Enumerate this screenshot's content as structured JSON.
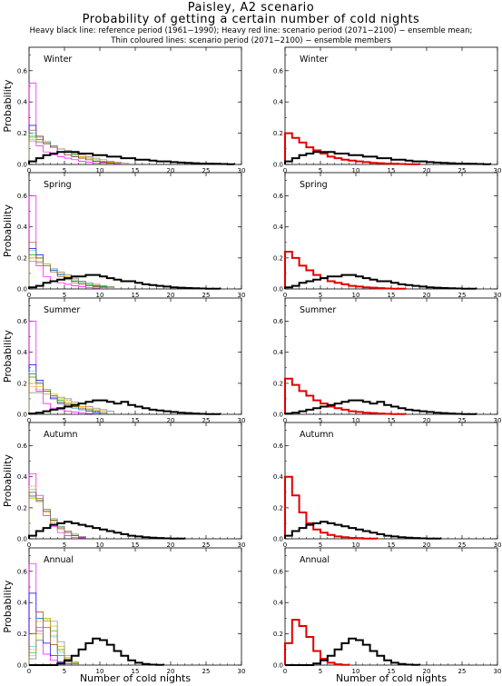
{
  "header": {
    "title": "Paisley, A2 scenario",
    "subtitle": "Probability of getting a certain number of cold nights",
    "legend_line1": "Heavy black line: reference period (1961−1990); Heavy red line: scenario period (2071−2100) − ensemble mean;",
    "legend_line2": "Thin coloured lines: scenario period (2071−2100) − ensemble members"
  },
  "axes": {
    "xlabel": "Number of cold nights",
    "ylabel": "Probability",
    "xlim": [
      0,
      30
    ],
    "ylim": [
      0,
      0.75
    ],
    "xticks": [
      "0",
      "5",
      "10",
      "15",
      "20",
      "25",
      "30"
    ],
    "yticks": [
      "0.0",
      "0.2",
      "0.4",
      "0.6"
    ]
  },
  "colors": {
    "reference": "#000000",
    "scenario_mean": "#e00000",
    "members": [
      "#ff00ff",
      "#0000ff",
      "#00c8c8",
      "#00b000",
      "#c8c800",
      "#ff8c00",
      "#8b4513",
      "#808080",
      "#9400d3",
      "#006400",
      "#ff1493"
    ]
  },
  "chart_data": [
    {
      "type": "line",
      "step": true,
      "season": "Winter",
      "reference": [
        0.02,
        0.04,
        0.06,
        0.07,
        0.08,
        0.08,
        0.08,
        0.07,
        0.07,
        0.06,
        0.06,
        0.05,
        0.05,
        0.04,
        0.04,
        0.03,
        0.03,
        0.025,
        0.02,
        0.02,
        0.015,
        0.012,
        0.01,
        0.008,
        0.006,
        0.005,
        0.004,
        0.003,
        0.002
      ],
      "scenario_mean": [
        0.2,
        0.17,
        0.14,
        0.11,
        0.09,
        0.07,
        0.05,
        0.04,
        0.03,
        0.025,
        0.02,
        0.015,
        0.01,
        0.008,
        0.006,
        0.004,
        0.003,
        0.002,
        0.001
      ],
      "members": [
        [
          0.52,
          0.12,
          0.08,
          0.06,
          0.05,
          0.04,
          0.03,
          0.02,
          0.015,
          0.01,
          0.01,
          0.008,
          0.006
        ],
        [
          0.25,
          0.18,
          0.14,
          0.11,
          0.08,
          0.06,
          0.05,
          0.04,
          0.03,
          0.02,
          0.015,
          0.01
        ],
        [
          0.2,
          0.17,
          0.15,
          0.12,
          0.1,
          0.08,
          0.06,
          0.05,
          0.04,
          0.03,
          0.02,
          0.015,
          0.01
        ],
        [
          0.18,
          0.16,
          0.14,
          0.12,
          0.1,
          0.08,
          0.06,
          0.05,
          0.04,
          0.03,
          0.02,
          0.015,
          0.01
        ],
        [
          0.17,
          0.15,
          0.14,
          0.12,
          0.1,
          0.08,
          0.07,
          0.05,
          0.04,
          0.03,
          0.02,
          0.015,
          0.01
        ],
        [
          0.16,
          0.15,
          0.13,
          0.12,
          0.1,
          0.08,
          0.07,
          0.05,
          0.04,
          0.03,
          0.02,
          0.015,
          0.01
        ],
        [
          0.22,
          0.18,
          0.14,
          0.11,
          0.08,
          0.06,
          0.05,
          0.04,
          0.03,
          0.02,
          0.015,
          0.01
        ],
        [
          0.15,
          0.14,
          0.13,
          0.12,
          0.1,
          0.09,
          0.07,
          0.06,
          0.05,
          0.04,
          0.03,
          0.02,
          0.015,
          0.01
        ]
      ]
    },
    {
      "type": "line",
      "step": true,
      "season": "Spring",
      "reference": [
        0.01,
        0.02,
        0.04,
        0.05,
        0.06,
        0.07,
        0.08,
        0.08,
        0.09,
        0.09,
        0.08,
        0.07,
        0.06,
        0.05,
        0.05,
        0.04,
        0.03,
        0.025,
        0.02,
        0.015,
        0.01,
        0.008,
        0.006,
        0.004,
        0.003,
        0.002,
        0.001
      ],
      "scenario_mean": [
        0.24,
        0.2,
        0.15,
        0.12,
        0.09,
        0.07,
        0.05,
        0.04,
        0.03,
        0.02,
        0.015,
        0.01,
        0.008,
        0.005,
        0.003,
        0.002,
        0.001
      ],
      "members": [
        [
          0.6,
          0.15,
          0.08,
          0.05,
          0.04,
          0.03,
          0.02,
          0.015,
          0.01,
          0.006
        ],
        [
          0.26,
          0.22,
          0.16,
          0.12,
          0.09,
          0.07,
          0.05,
          0.04,
          0.03,
          0.02,
          0.015,
          0.01
        ],
        [
          0.25,
          0.2,
          0.16,
          0.12,
          0.09,
          0.07,
          0.05,
          0.04,
          0.03,
          0.02,
          0.015,
          0.01
        ],
        [
          0.22,
          0.2,
          0.16,
          0.13,
          0.1,
          0.08,
          0.06,
          0.04,
          0.03,
          0.02,
          0.015,
          0.01
        ],
        [
          0.2,
          0.18,
          0.16,
          0.13,
          0.1,
          0.08,
          0.06,
          0.05,
          0.04,
          0.03,
          0.02,
          0.01
        ],
        [
          0.2,
          0.17,
          0.15,
          0.13,
          0.1,
          0.08,
          0.06,
          0.05,
          0.04,
          0.03,
          0.02,
          0.015
        ],
        [
          0.3,
          0.2,
          0.15,
          0.11,
          0.08,
          0.06,
          0.04,
          0.03,
          0.02,
          0.015,
          0.01
        ],
        [
          0.18,
          0.17,
          0.15,
          0.13,
          0.11,
          0.09,
          0.07,
          0.05,
          0.04,
          0.03,
          0.02,
          0.015
        ]
      ]
    },
    {
      "type": "line",
      "step": true,
      "season": "Summer",
      "reference": [
        0.005,
        0.01,
        0.02,
        0.03,
        0.04,
        0.05,
        0.06,
        0.07,
        0.08,
        0.09,
        0.09,
        0.08,
        0.07,
        0.08,
        0.06,
        0.05,
        0.04,
        0.03,
        0.025,
        0.02,
        0.015,
        0.01,
        0.008,
        0.005,
        0.003,
        0.002,
        0.001
      ],
      "scenario_mean": [
        0.23,
        0.19,
        0.15,
        0.12,
        0.09,
        0.07,
        0.05,
        0.04,
        0.03,
        0.02,
        0.015,
        0.01,
        0.008,
        0.005,
        0.003,
        0.002,
        0.001
      ],
      "members": [
        [
          0.6,
          0.15,
          0.07,
          0.04,
          0.03,
          0.02,
          0.015,
          0.01,
          0.005
        ],
        [
          0.32,
          0.22,
          0.15,
          0.1,
          0.07,
          0.05,
          0.04,
          0.03,
          0.02,
          0.01
        ],
        [
          0.28,
          0.21,
          0.15,
          0.11,
          0.08,
          0.06,
          0.04,
          0.03,
          0.02,
          0.015,
          0.01
        ],
        [
          0.24,
          0.2,
          0.16,
          0.12,
          0.09,
          0.07,
          0.05,
          0.04,
          0.03,
          0.02,
          0.01
        ],
        [
          0.2,
          0.18,
          0.15,
          0.13,
          0.1,
          0.08,
          0.06,
          0.05,
          0.04,
          0.03,
          0.02
        ],
        [
          0.18,
          0.16,
          0.15,
          0.13,
          0.11,
          0.09,
          0.07,
          0.05,
          0.04,
          0.03,
          0.02
        ],
        [
          0.26,
          0.2,
          0.15,
          0.11,
          0.08,
          0.06,
          0.05,
          0.04,
          0.03,
          0.02,
          0.01
        ],
        [
          0.14,
          0.14,
          0.13,
          0.12,
          0.11,
          0.1,
          0.08,
          0.07,
          0.05,
          0.04,
          0.03,
          0.02
        ]
      ]
    },
    {
      "type": "line",
      "step": true,
      "season": "Autumn",
      "reference": [
        0.02,
        0.05,
        0.07,
        0.09,
        0.1,
        0.11,
        0.1,
        0.09,
        0.08,
        0.07,
        0.06,
        0.05,
        0.04,
        0.03,
        0.02,
        0.015,
        0.01,
        0.007,
        0.005,
        0.003,
        0.002,
        0.001
      ],
      "scenario_mean": [
        0.4,
        0.28,
        0.17,
        0.1,
        0.06,
        0.04,
        0.025,
        0.015,
        0.01,
        0.006,
        0.004,
        0.002,
        0.001
      ],
      "members": [
        [
          0.42,
          0.28,
          0.15,
          0.08,
          0.04,
          0.02,
          0.01,
          0.005
        ],
        [
          0.3,
          0.26,
          0.18,
          0.12,
          0.07,
          0.04,
          0.02,
          0.01
        ],
        [
          0.32,
          0.26,
          0.18,
          0.11,
          0.06,
          0.04,
          0.02,
          0.01
        ],
        [
          0.28,
          0.25,
          0.19,
          0.12,
          0.08,
          0.04,
          0.02,
          0.01
        ],
        [
          0.26,
          0.24,
          0.19,
          0.13,
          0.08,
          0.05,
          0.03,
          0.01
        ],
        [
          0.34,
          0.26,
          0.17,
          0.1,
          0.06,
          0.04,
          0.02,
          0.01
        ],
        [
          0.3,
          0.25,
          0.18,
          0.12,
          0.07,
          0.04,
          0.02,
          0.01
        ],
        [
          0.27,
          0.24,
          0.19,
          0.13,
          0.08,
          0.05,
          0.03,
          0.015
        ]
      ]
    },
    {
      "type": "line",
      "step": true,
      "season": "Annual",
      "reference": [
        0,
        0,
        0,
        0,
        0.01,
        0.03,
        0.06,
        0.1,
        0.14,
        0.17,
        0.16,
        0.13,
        0.09,
        0.06,
        0.03,
        0.015,
        0.007,
        0.003,
        0.001
      ],
      "scenario_mean": [
        0.14,
        0.29,
        0.25,
        0.18,
        0.09,
        0.04,
        0.015,
        0.005,
        0.001
      ],
      "members": [
        [
          0.65,
          0.22,
          0.07,
          0.03,
          0.01
        ],
        [
          0.46,
          0.3,
          0.14,
          0.06,
          0.02,
          0.01
        ],
        [
          0.12,
          0.3,
          0.28,
          0.18,
          0.08,
          0.03,
          0.01
        ],
        [
          0.08,
          0.24,
          0.3,
          0.22,
          0.1,
          0.04,
          0.01
        ],
        [
          0.06,
          0.2,
          0.3,
          0.25,
          0.12,
          0.05,
          0.015
        ],
        [
          0.1,
          0.28,
          0.29,
          0.19,
          0.09,
          0.04,
          0.01
        ],
        [
          0.2,
          0.34,
          0.24,
          0.13,
          0.06,
          0.02,
          0.01
        ],
        [
          0.04,
          0.16,
          0.28,
          0.28,
          0.15,
          0.06,
          0.02
        ]
      ]
    }
  ]
}
